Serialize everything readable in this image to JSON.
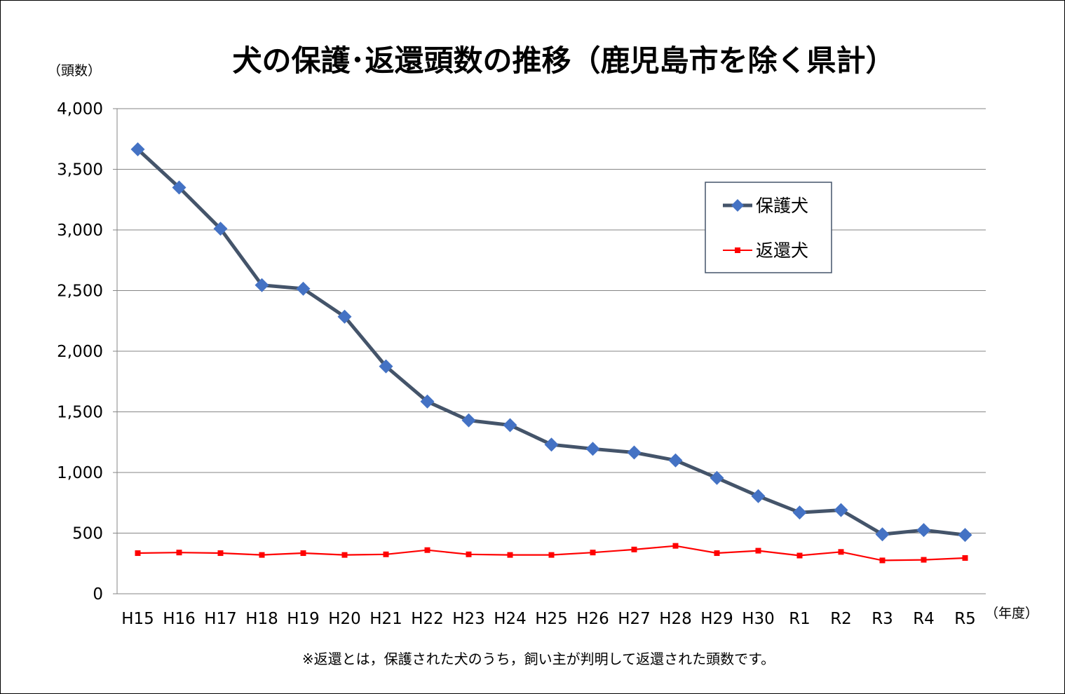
{
  "chart_data": {
    "type": "line",
    "title": "犬の保護･返還頭数の推移（鹿児島市を除く県計）",
    "ylabel": "（頭数）",
    "xlabel": "（年度）",
    "note": "※返還とは，保護された犬のうち，飼い主が判明して返還された頭数です。",
    "ylim": [
      0,
      4000
    ],
    "ytick_values": [
      0,
      500,
      1000,
      1500,
      2000,
      2500,
      3000,
      3500,
      4000
    ],
    "ytick_labels": [
      "0",
      "500",
      "1,000",
      "1,500",
      "2,000",
      "2,500",
      "3,000",
      "3,500",
      "4,000"
    ],
    "grid": true,
    "legend_position": "top-right",
    "categories": [
      "H15",
      "H16",
      "H17",
      "H18",
      "H19",
      "H20",
      "H21",
      "H22",
      "H23",
      "H24",
      "H25",
      "H26",
      "H27",
      "H28",
      "H29",
      "H30",
      "R1",
      "R2",
      "R3",
      "R4",
      "R5"
    ],
    "series": [
      {
        "name": "保護犬",
        "color": "#44546a",
        "marker": "diamond",
        "marker_color": "#4472c4",
        "values": [
          3665,
          3350,
          3010,
          2545,
          2515,
          2285,
          1875,
          1585,
          1430,
          1390,
          1230,
          1195,
          1165,
          1100,
          955,
          805,
          670,
          690,
          490,
          525,
          485
        ]
      },
      {
        "name": "返還犬",
        "color": "#ff0000",
        "marker": "square",
        "marker_color": "#ff0000",
        "values": [
          335,
          340,
          335,
          320,
          335,
          320,
          325,
          360,
          325,
          320,
          320,
          340,
          365,
          395,
          335,
          355,
          315,
          345,
          275,
          280,
          295
        ]
      }
    ]
  }
}
